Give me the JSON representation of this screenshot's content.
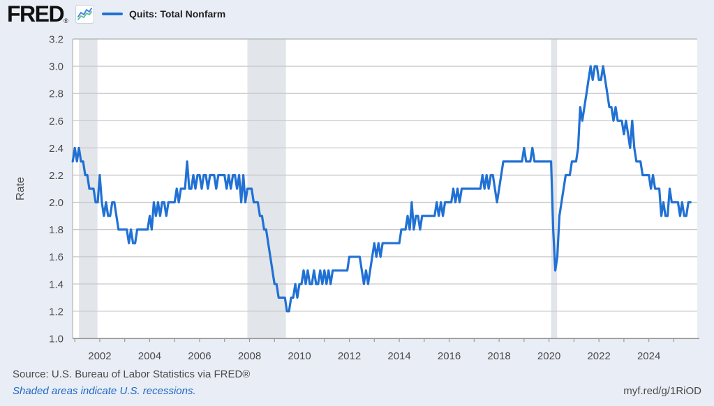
{
  "header": {
    "logo_text": "FRED",
    "registered_mark": "®",
    "legend": {
      "series_label": "Quits: Total Nonfarm",
      "swatch_color": "#2171d4"
    }
  },
  "chart_data": {
    "type": "line",
    "title": "Quits: Total Nonfarm",
    "ylabel": "Rate",
    "frequency": "monthly",
    "x_start": "2000-12",
    "x_end": "2025-09",
    "ylim": [
      1.0,
      3.2
    ],
    "y_tick_labels": [
      "3.2",
      "3.0",
      "2.8",
      "2.6",
      "2.4",
      "2.2",
      "2.0",
      "1.8",
      "1.6",
      "1.4",
      "1.2",
      "1.0"
    ],
    "x_tick_labels": [
      "2002",
      "2004",
      "2006",
      "2008",
      "2010",
      "2012",
      "2014",
      "2016",
      "2018",
      "2020",
      "2022",
      "2024"
    ],
    "grid": "horizontal",
    "legend_position": "top-left",
    "line_color": "#2171d4",
    "recession_band_color": "#e2e5ea",
    "recession_bands_month_index": [
      [
        3,
        11.9
      ],
      [
        84,
        102.5
      ],
      [
        230,
        232.9
      ]
    ],
    "values": [
      2.3,
      2.4,
      2.3,
      2.4,
      2.3,
      2.3,
      2.2,
      2.2,
      2.1,
      2.1,
      2.1,
      2.0,
      2.0,
      2.2,
      2.0,
      1.9,
      2.0,
      1.9,
      1.9,
      2.0,
      2.0,
      1.9,
      1.8,
      1.8,
      1.8,
      1.8,
      1.8,
      1.7,
      1.8,
      1.7,
      1.7,
      1.8,
      1.8,
      1.8,
      1.8,
      1.8,
      1.8,
      1.9,
      1.8,
      2.0,
      1.9,
      2.0,
      1.9,
      2.0,
      2.0,
      1.9,
      2.0,
      2.0,
      2.0,
      2.0,
      2.1,
      2.0,
      2.1,
      2.1,
      2.1,
      2.3,
      2.1,
      2.1,
      2.2,
      2.1,
      2.2,
      2.2,
      2.1,
      2.2,
      2.2,
      2.1,
      2.2,
      2.2,
      2.2,
      2.1,
      2.2,
      2.2,
      2.2,
      2.2,
      2.1,
      2.2,
      2.1,
      2.2,
      2.2,
      2.1,
      2.2,
      2.0,
      2.2,
      2.0,
      2.1,
      2.1,
      2.1,
      2.0,
      2.0,
      2.0,
      1.9,
      1.9,
      1.8,
      1.8,
      1.7,
      1.6,
      1.5,
      1.4,
      1.4,
      1.3,
      1.3,
      1.3,
      1.3,
      1.2,
      1.2,
      1.3,
      1.3,
      1.4,
      1.3,
      1.4,
      1.4,
      1.5,
      1.4,
      1.5,
      1.4,
      1.4,
      1.5,
      1.4,
      1.4,
      1.5,
      1.4,
      1.5,
      1.4,
      1.5,
      1.4,
      1.5,
      1.5,
      1.5,
      1.5,
      1.5,
      1.5,
      1.5,
      1.5,
      1.6,
      1.6,
      1.6,
      1.6,
      1.6,
      1.6,
      1.5,
      1.4,
      1.5,
      1.4,
      1.5,
      1.6,
      1.7,
      1.6,
      1.7,
      1.6,
      1.7,
      1.7,
      1.7,
      1.7,
      1.7,
      1.7,
      1.7,
      1.7,
      1.7,
      1.8,
      1.8,
      1.8,
      1.9,
      1.8,
      2.0,
      1.8,
      1.9,
      1.9,
      1.8,
      1.9,
      1.9,
      1.9,
      1.9,
      1.9,
      1.9,
      1.9,
      2.0,
      1.9,
      2.0,
      1.9,
      2.0,
      2.0,
      2.0,
      2.0,
      2.1,
      2.0,
      2.1,
      2.0,
      2.1,
      2.1,
      2.1,
      2.1,
      2.1,
      2.1,
      2.1,
      2.1,
      2.1,
      2.1,
      2.2,
      2.1,
      2.2,
      2.1,
      2.2,
      2.2,
      2.1,
      2.0,
      2.1,
      2.2,
      2.3,
      2.3,
      2.3,
      2.3,
      2.3,
      2.3,
      2.3,
      2.3,
      2.3,
      2.3,
      2.4,
      2.3,
      2.3,
      2.3,
      2.4,
      2.3,
      2.3,
      2.3,
      2.3,
      2.3,
      2.3,
      2.3,
      2.3,
      2.3,
      1.8,
      1.5,
      1.6,
      1.9,
      2.0,
      2.1,
      2.2,
      2.2,
      2.2,
      2.3,
      2.3,
      2.3,
      2.4,
      2.7,
      2.6,
      2.7,
      2.8,
      2.9,
      3.0,
      2.9,
      3.0,
      3.0,
      2.9,
      2.9,
      3.0,
      2.9,
      2.8,
      2.7,
      2.7,
      2.6,
      2.7,
      2.6,
      2.6,
      2.6,
      2.5,
      2.6,
      2.5,
      2.4,
      2.6,
      2.4,
      2.3,
      2.3,
      2.3,
      2.2,
      2.2,
      2.2,
      2.2,
      2.1,
      2.2,
      2.1,
      2.1,
      2.1,
      1.9,
      2.0,
      1.9,
      1.9,
      2.1,
      2.0,
      2.0,
      2.0,
      2.0,
      1.9,
      2.0,
      1.9,
      1.9,
      2.0,
      2.0
    ]
  },
  "footer": {
    "source_text": "Source: U.S. Bureau of Labor Statistics via FRED®",
    "recession_note": "Shaded areas indicate U.S. recessions.",
    "share_url": "myf.red/g/1RiOD"
  },
  "colors": {
    "page_background": "#e9eef6",
    "plot_background": "#ffffff",
    "gridline": "#c9c9c9",
    "plot_border": "#b6b6b6",
    "x_axis_line": "#979797",
    "tick_text": "#4a4a4a",
    "recession_note_link": "#1f66c4",
    "logo_icon_blue": "#4a86d8",
    "logo_icon_teal": "#63c1a4"
  }
}
